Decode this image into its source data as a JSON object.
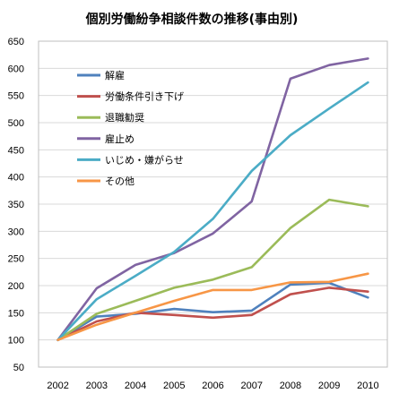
{
  "chart_data": {
    "type": "line",
    "title": "個別労働紛争相談件数の推移(事由別)",
    "xlabel": "",
    "ylabel": "",
    "x": [
      "2002",
      "2003",
      "2004",
      "2005",
      "2006",
      "2007",
      "2008",
      "2009",
      "2010"
    ],
    "ylim": [
      50,
      650
    ],
    "yticks": [
      50,
      100,
      150,
      200,
      250,
      300,
      350,
      400,
      450,
      500,
      550,
      600,
      650
    ],
    "grid": true,
    "legend_position": "top-left",
    "series": [
      {
        "name": "解雇",
        "color": "#4f81bd",
        "values": [
          100,
          143,
          148,
          157,
          151,
          154,
          202,
          205,
          178
        ]
      },
      {
        "name": "労働条件引き下げ",
        "color": "#c0504d",
        "values": [
          100,
          134,
          150,
          146,
          141,
          146,
          184,
          196,
          189
        ]
      },
      {
        "name": "退職勧奨",
        "color": "#9bbb59",
        "values": [
          100,
          148,
          172,
          196,
          211,
          234,
          306,
          358,
          346
        ]
      },
      {
        "name": "雇止め",
        "color": "#8064a2",
        "values": [
          100,
          195,
          238,
          260,
          296,
          355,
          581,
          606,
          618
        ]
      },
      {
        "name": "いじめ・嫌がらせ",
        "color": "#4bacc6",
        "values": [
          100,
          175,
          218,
          262,
          323,
          411,
          477,
          526,
          574
        ]
      },
      {
        "name": "その他",
        "color": "#f79646",
        "values": [
          100,
          128,
          150,
          172,
          192,
          192,
          206,
          207,
          222
        ]
      }
    ]
  }
}
